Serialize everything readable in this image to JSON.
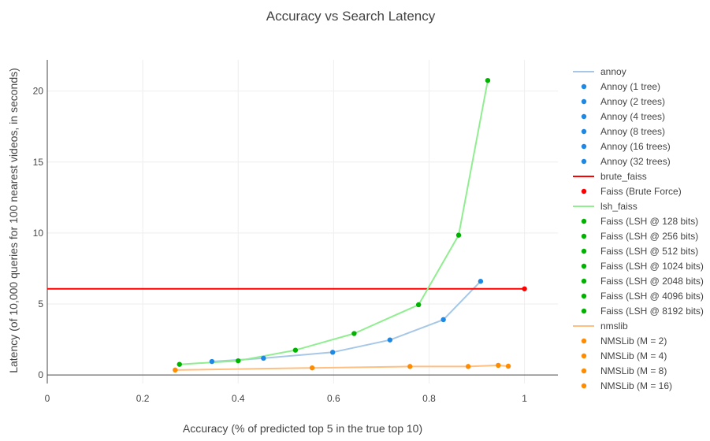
{
  "chart_data": {
    "type": "scatter",
    "title": "Accuracy vs Search Latency",
    "xlabel": "Accuracy (% of predicted top 5 in the true top 10)",
    "ylabel": "Latency (of 10,000 queries for 100 nearest videos, in seconds)",
    "xlim": [
      0,
      1.07
    ],
    "ylim": [
      -0.6,
      22.2
    ],
    "x_ticks": [
      0,
      0.2,
      0.4,
      0.6,
      0.8,
      1
    ],
    "x_tick_labels": [
      "0",
      "0.2",
      "0.4",
      "0.6",
      "0.8",
      "1"
    ],
    "y_ticks": [
      0,
      5,
      10,
      15,
      20
    ],
    "y_tick_labels": [
      "0",
      "5",
      "10",
      "15",
      "20"
    ],
    "grid": true,
    "legend_position": "right",
    "lines": [
      {
        "name": "annoy",
        "color": "#a6c8e6",
        "x": [
          0.345,
          0.453,
          0.598,
          0.718,
          0.83,
          0.908
        ],
        "y": [
          0.95,
          1.18,
          1.6,
          2.47,
          3.9,
          6.6
        ]
      },
      {
        "name": "brute_faiss",
        "color": "#ff0000",
        "x": [
          0,
          1
        ],
        "y": [
          6.07,
          6.07
        ]
      },
      {
        "name": "lsh_faiss",
        "color": "#90ee90",
        "x": [
          0.277,
          0.4,
          0.52,
          0.643,
          0.778,
          0.862,
          0.923
        ],
        "y": [
          0.75,
          1.0,
          1.75,
          2.92,
          4.95,
          9.85,
          20.75
        ]
      },
      {
        "name": "nmslib",
        "color": "#ffbf80",
        "x": [
          0.268,
          0.555,
          0.76,
          0.882,
          0.945,
          0.966
        ],
        "y": [
          0.35,
          0.5,
          0.6,
          0.6,
          0.68,
          0.62
        ]
      }
    ],
    "points": [
      {
        "name": "Annoy (1 tree)",
        "color": "#1e88e5",
        "x": 0.908,
        "y": 6.6
      },
      {
        "name": "Annoy (2 trees)",
        "color": "#1e88e5",
        "x": 0.83,
        "y": 3.9
      },
      {
        "name": "Annoy (4 trees)",
        "color": "#1e88e5",
        "x": 0.718,
        "y": 2.47
      },
      {
        "name": "Annoy (8 trees)",
        "color": "#1e88e5",
        "x": 0.598,
        "y": 1.6
      },
      {
        "name": "Annoy (16 trees)",
        "color": "#1e88e5",
        "x": 0.453,
        "y": 1.18
      },
      {
        "name": "Annoy (32 trees)",
        "color": "#1e88e5",
        "x": 0.345,
        "y": 0.95
      },
      {
        "name": "Faiss (Brute Force)",
        "color": "#ff0000",
        "x": 1.0,
        "y": 6.07
      },
      {
        "name": "Faiss (LSH @ 128 bits)",
        "color": "#00b300",
        "x": 0.277,
        "y": 0.75
      },
      {
        "name": "Faiss (LSH @ 256 bits)",
        "color": "#00b300",
        "x": 0.4,
        "y": 1.0
      },
      {
        "name": "Faiss (LSH @ 512 bits)",
        "color": "#00b300",
        "x": 0.52,
        "y": 1.75
      },
      {
        "name": "Faiss (LSH @ 1024 bits)",
        "color": "#00b300",
        "x": 0.643,
        "y": 2.92
      },
      {
        "name": "Faiss (LSH @ 2048 bits)",
        "color": "#00b300",
        "x": 0.778,
        "y": 4.95
      },
      {
        "name": "Faiss (LSH @ 4096 bits)",
        "color": "#00b300",
        "x": 0.862,
        "y": 9.85
      },
      {
        "name": "Faiss (LSH @ 8192 bits)",
        "color": "#00b300",
        "x": 0.923,
        "y": 20.75
      },
      {
        "name": "NMSLib (M = 2)",
        "color": "#ff8c00",
        "x": 0.268,
        "y": 0.35
      },
      {
        "name": "NMSLib (M = 4)",
        "color": "#ff8c00",
        "x": 0.555,
        "y": 0.5
      },
      {
        "name": "NMSLib (M = 8)",
        "color": "#ff8c00",
        "x": 0.76,
        "y": 0.6
      },
      {
        "name": "NMSLib (M = 16)",
        "color": "#ff8c00",
        "x": 0.882,
        "y": 0.6
      }
    ],
    "extra_points": [
      {
        "color": "#ff8c00",
        "x": 0.945,
        "y": 0.68
      },
      {
        "color": "#ff8c00",
        "x": 0.966,
        "y": 0.62
      }
    ],
    "legend": [
      {
        "label": "annoy",
        "kind": "line",
        "color": "#a6c8e6"
      },
      {
        "label": "Annoy (1 tree)",
        "kind": "marker",
        "color": "#1e88e5"
      },
      {
        "label": "Annoy (2 trees)",
        "kind": "marker",
        "color": "#1e88e5"
      },
      {
        "label": "Annoy (4 trees)",
        "kind": "marker",
        "color": "#1e88e5"
      },
      {
        "label": "Annoy (8 trees)",
        "kind": "marker",
        "color": "#1e88e5"
      },
      {
        "label": "Annoy (16 trees)",
        "kind": "marker",
        "color": "#1e88e5"
      },
      {
        "label": "Annoy (32 trees)",
        "kind": "marker",
        "color": "#1e88e5"
      },
      {
        "label": "brute_faiss",
        "kind": "line",
        "color": "#ff0000"
      },
      {
        "label": "Faiss (Brute Force)",
        "kind": "marker",
        "color": "#ff0000"
      },
      {
        "label": "lsh_faiss",
        "kind": "line",
        "color": "#90ee90"
      },
      {
        "label": "Faiss (LSH @ 128 bits)",
        "kind": "marker",
        "color": "#00b300"
      },
      {
        "label": "Faiss (LSH @ 256 bits)",
        "kind": "marker",
        "color": "#00b300"
      },
      {
        "label": "Faiss (LSH @ 512 bits)",
        "kind": "marker",
        "color": "#00b300"
      },
      {
        "label": "Faiss (LSH @ 1024 bits)",
        "kind": "marker",
        "color": "#00b300"
      },
      {
        "label": "Faiss (LSH @ 2048 bits)",
        "kind": "marker",
        "color": "#00b300"
      },
      {
        "label": "Faiss (LSH @ 4096 bits)",
        "kind": "marker",
        "color": "#00b300"
      },
      {
        "label": "Faiss (LSH @ 8192 bits)",
        "kind": "marker",
        "color": "#00b300"
      },
      {
        "label": "nmslib",
        "kind": "line",
        "color": "#ffbf80"
      },
      {
        "label": "NMSLib (M = 2)",
        "kind": "marker",
        "color": "#ff8c00"
      },
      {
        "label": "NMSLib (M = 4)",
        "kind": "marker",
        "color": "#ff8c00"
      },
      {
        "label": "NMSLib (M = 8)",
        "kind": "marker",
        "color": "#ff8c00"
      },
      {
        "label": "NMSLib (M = 16)",
        "kind": "marker",
        "color": "#ff8c00"
      }
    ]
  }
}
